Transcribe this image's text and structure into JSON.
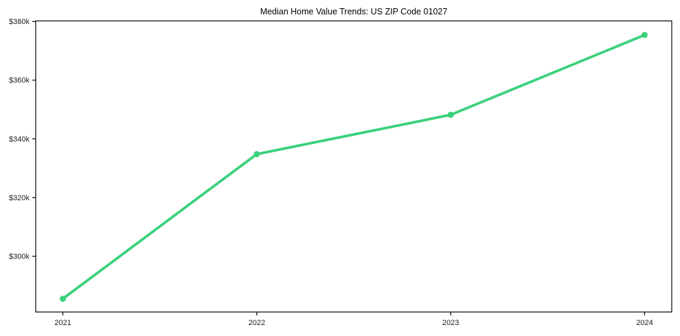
{
  "style": {
    "background": "#ffffff",
    "plot_background": "#ffffff",
    "spine_color": "#000000",
    "text_color": "#1c1c1c",
    "title_color": "#000000"
  },
  "chart_data": {
    "type": "line",
    "title": "Median Home Value Trends: US ZIP Code 01027",
    "xlabel": "",
    "ylabel": "",
    "grid": false,
    "legend": "none",
    "x": [
      2021,
      2022,
      2023,
      2024
    ],
    "x_tick_labels": [
      "2021",
      "2022",
      "2023",
      "2024"
    ],
    "xlim": [
      2020.86,
      2024.14
    ],
    "ylim": [
      281000,
      380200
    ],
    "yticks": [
      300000,
      320000,
      340000,
      360000,
      380000
    ],
    "y_tick_labels": [
      "$300k",
      "$320k",
      "$340k",
      "$360k",
      "$380k"
    ],
    "series": [
      {
        "name": "Median Home Value",
        "values": [
          285500,
          334800,
          348200,
          375400
        ],
        "color": "#3bd17c",
        "line_width": 3.8,
        "marker": "circle",
        "marker_radius": 4.5
      }
    ]
  }
}
